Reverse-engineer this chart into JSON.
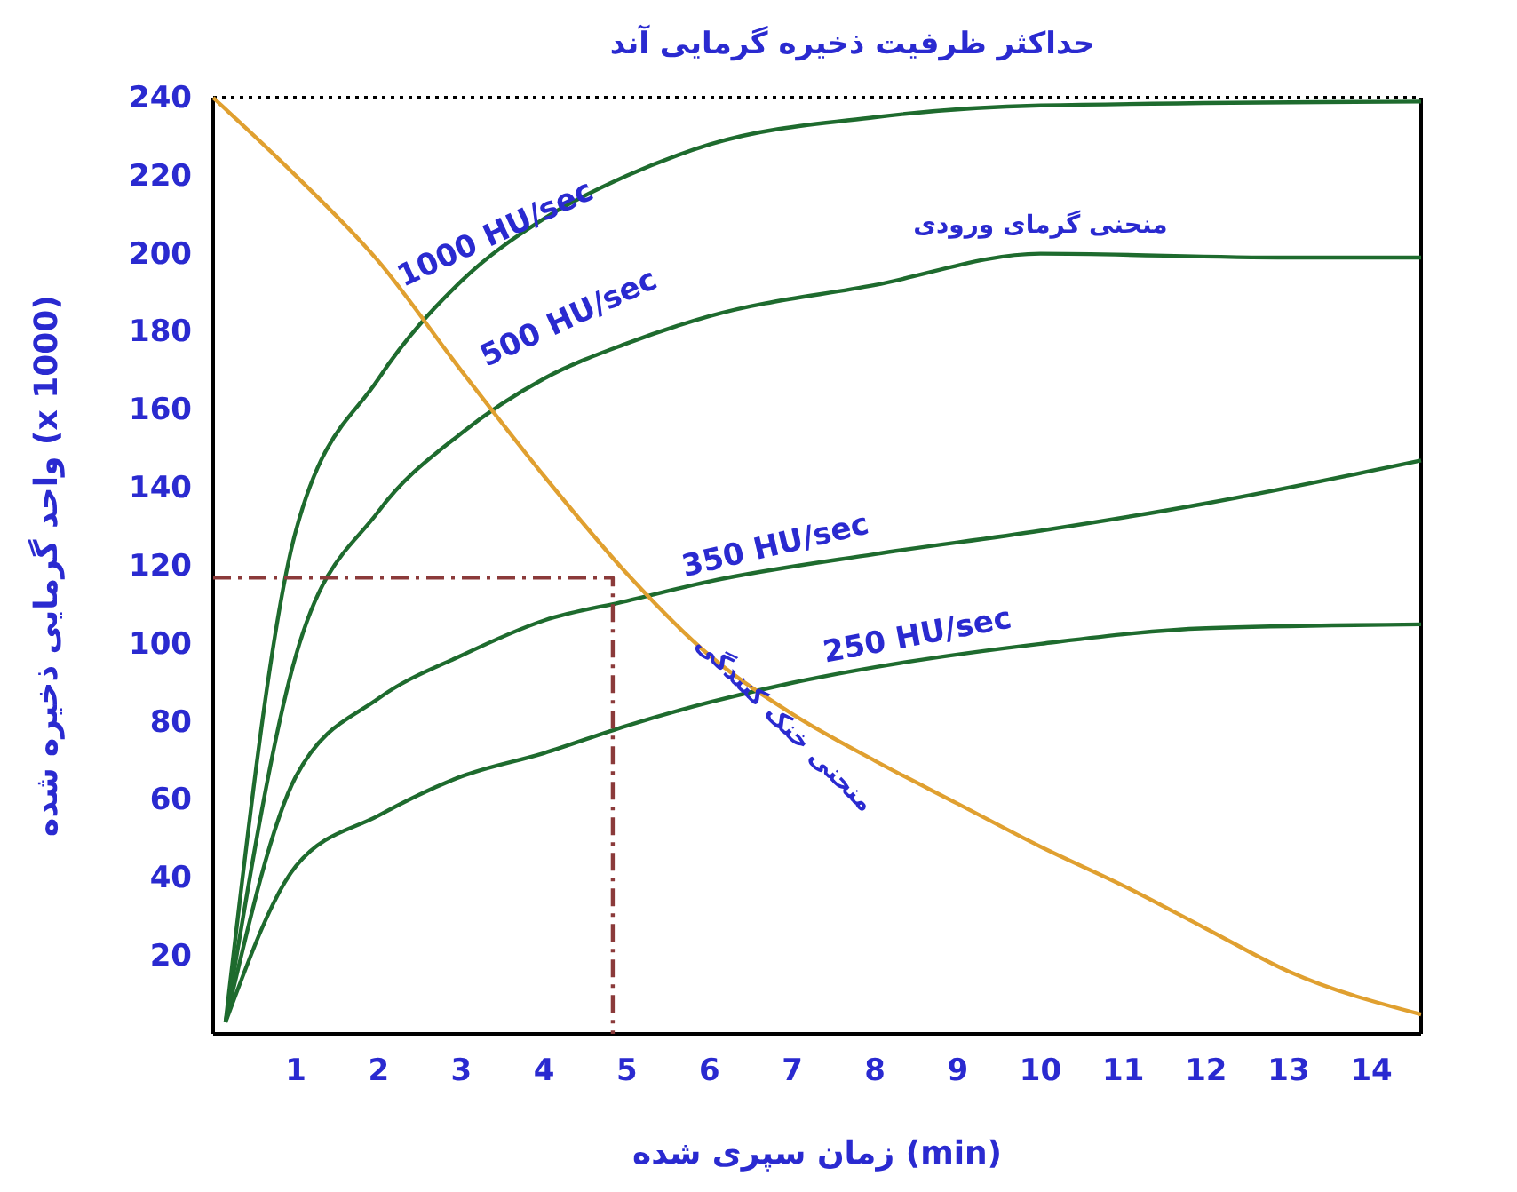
{
  "chart_data": {
    "type": "line",
    "title": "حداکثر ظرفیت ذخیره گرمایی آند",
    "xlabel": "زمان سپری شده (min)",
    "ylabel": "واحد گرمایی ذخیره شده (x 1000)",
    "xlim": [
      0,
      14.6
    ],
    "xticks": [
      1,
      2,
      3,
      4,
      5,
      6,
      7,
      8,
      9,
      10,
      11,
      12,
      13,
      14
    ],
    "ylim": [
      0,
      240
    ],
    "yticks": [
      20,
      40,
      60,
      80,
      100,
      120,
      140,
      160,
      180,
      200,
      220,
      240
    ],
    "grid": false,
    "marker": "none",
    "series": [
      {
        "name": "1000 HU/sec",
        "color": "#1e6b2e",
        "x": [
          0.15,
          1,
          2,
          3,
          4,
          5,
          6,
          8,
          10,
          14.6
        ],
        "values": [
          3,
          129,
          168,
          193,
          209,
          220,
          228,
          235,
          238,
          239
        ]
      },
      {
        "name": "500 HU/sec",
        "color": "#1e6b2e",
        "x": [
          0.15,
          1,
          2,
          3,
          4,
          5,
          6,
          8,
          10,
          13,
          14.6
        ],
        "values": [
          3,
          97,
          134,
          154,
          168,
          177,
          184,
          192,
          200,
          199,
          199
        ]
      },
      {
        "name": "350 HU/sec",
        "color": "#1e6b2e",
        "x": [
          0.15,
          1,
          2,
          3,
          4,
          5,
          6,
          8,
          10,
          12,
          14.6
        ],
        "values": [
          3,
          66,
          86,
          97,
          106,
          111,
          116,
          123,
          129,
          136,
          147
        ]
      },
      {
        "name": "250 HU/sec",
        "color": "#1e6b2e",
        "x": [
          0.15,
          1,
          2,
          3,
          4,
          5,
          6,
          7,
          8,
          10,
          12,
          14.6
        ],
        "values": [
          3,
          43,
          56,
          66,
          72,
          79,
          85,
          90,
          94,
          100,
          104,
          105
        ]
      },
      {
        "name": "منحنی خنک کنندگی",
        "color": "#e0a030",
        "x": [
          0,
          1,
          2,
          3,
          4,
          5,
          6,
          7,
          8,
          9,
          10,
          11,
          12,
          13,
          14.6
        ],
        "values": [
          240,
          220,
          198,
          170,
          143,
          118,
          97,
          82,
          70,
          59,
          48,
          38,
          27,
          16,
          5
        ]
      },
      {
        "color": "#8b3a3a",
        "line_style": "dashed",
        "x": [
          0,
          4.83,
          4.83
        ],
        "values": [
          117,
          117,
          0
        ]
      }
    ],
    "ref_lines": [
      {
        "axis": "y",
        "value": 240,
        "color": "#000000",
        "line_style": "dotted"
      }
    ],
    "annotations": [
      {
        "text": "منحنی گرمای ورودی",
        "x": 10,
        "y": 200
      }
    ]
  }
}
